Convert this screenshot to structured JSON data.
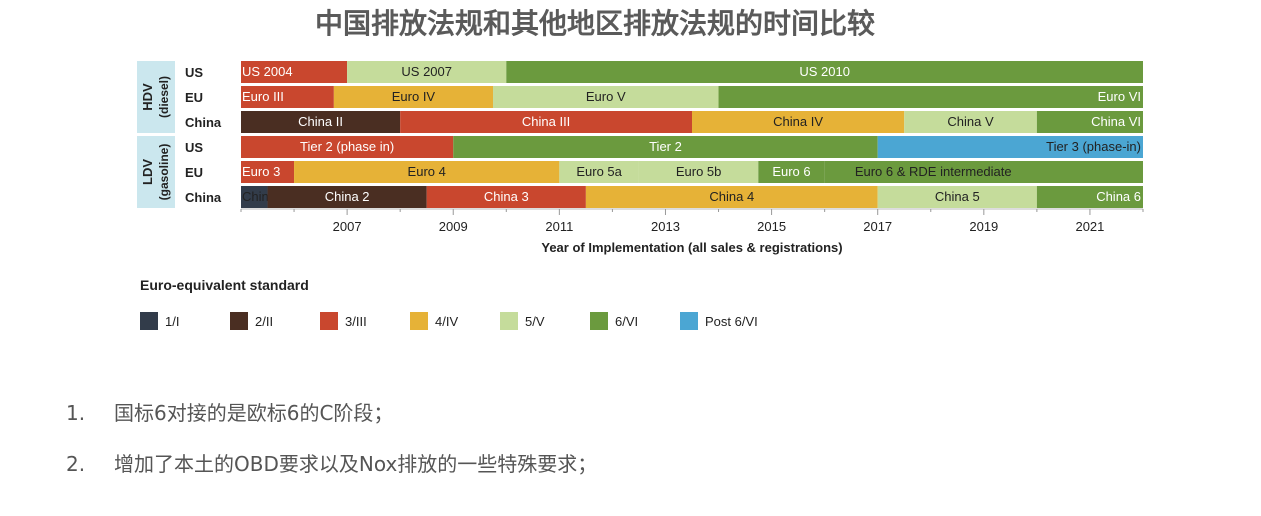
{
  "title": "中国排放法规和其他地区排放法规的时间比较",
  "notes": [
    {
      "num": "1.",
      "text": "国标6对接的是欧标6的C阶段；"
    },
    {
      "num": "2.",
      "text": "增加了本土的OBD要求以及Nox排放的一些特殊要求；"
    }
  ],
  "colors": {
    "1/I": "#323c4a",
    "2/II": "#4a2e22",
    "3/III": "#c9472e",
    "4/IV": "#e6b237",
    "5/V": "#c5dc9b",
    "6/VI": "#6b9a3e",
    "Post 6/VI": "#4ba6d3",
    "group_bg": "#cbe7ee"
  },
  "chart_data": {
    "type": "timeline",
    "xlabel": "Year of Implementation (all sales & registrations)",
    "xlim": [
      2005,
      2022
    ],
    "xticks": [
      2007,
      2009,
      2011,
      2013,
      2015,
      2017,
      2019,
      2021
    ],
    "groups": [
      {
        "label_top": "HDV",
        "label_bottom": "(diesel)",
        "rows": [
          0,
          1,
          2
        ]
      },
      {
        "label_top": "LDV",
        "label_bottom": "(gasoline)",
        "rows": [
          3,
          4,
          5
        ]
      }
    ],
    "rows": [
      {
        "label": "US",
        "segments": [
          {
            "label": "US 2004",
            "start": 2005,
            "end": 2007,
            "std": "3/III",
            "align": "left"
          },
          {
            "label": "US 2007",
            "start": 2007,
            "end": 2010,
            "std": "5/V",
            "align": "center"
          },
          {
            "label": "US 2010",
            "start": 2010,
            "end": 2022,
            "std": "6/VI",
            "align": "center"
          }
        ]
      },
      {
        "label": "EU",
        "segments": [
          {
            "label": "Euro III",
            "start": 2005,
            "end": 2006.75,
            "std": "3/III",
            "align": "left"
          },
          {
            "label": "Euro IV",
            "start": 2006.75,
            "end": 2009.75,
            "std": "4/IV",
            "align": "center"
          },
          {
            "label": "Euro V",
            "start": 2009.75,
            "end": 2014,
            "std": "5/V",
            "align": "center"
          },
          {
            "label": "Euro VI",
            "start": 2014,
            "end": 2022,
            "std": "6/VI",
            "align": "right"
          }
        ]
      },
      {
        "label": "China",
        "segments": [
          {
            "label": "China II",
            "start": 2005,
            "end": 2008,
            "std": "2/II",
            "align": "center"
          },
          {
            "label": "China III",
            "start": 2008,
            "end": 2013.5,
            "std": "3/III",
            "align": "center"
          },
          {
            "label": "China IV",
            "start": 2013.5,
            "end": 2017.5,
            "std": "4/IV",
            "align": "center"
          },
          {
            "label": "China V",
            "start": 2017.5,
            "end": 2020,
            "std": "5/V",
            "align": "center"
          },
          {
            "label": "China VI",
            "start": 2020,
            "end": 2022,
            "std": "6/VI",
            "align": "right"
          }
        ]
      },
      {
        "label": "US",
        "segments": [
          {
            "label": "Tier 2 (phase in)",
            "start": 2005,
            "end": 2009,
            "std": "3/III",
            "align": "center"
          },
          {
            "label": "Tier 2",
            "start": 2009,
            "end": 2017,
            "std": "6/VI",
            "align": "center"
          },
          {
            "label": "Tier 3 (phase-in)",
            "start": 2017,
            "end": 2022,
            "std": "Post 6/VI",
            "align": "right"
          }
        ]
      },
      {
        "label": "EU",
        "segments": [
          {
            "label": "Euro 3",
            "start": 2005,
            "end": 2006,
            "std": "3/III",
            "align": "left"
          },
          {
            "label": "Euro 4",
            "start": 2006,
            "end": 2011,
            "std": "4/IV",
            "align": "center"
          },
          {
            "label": "Euro 5a",
            "start": 2011,
            "end": 2012.5,
            "std": "5/V",
            "align": "center"
          },
          {
            "label": "Euro 5b",
            "start": 2012.5,
            "end": 2014.75,
            "std": "5/V",
            "align": "center"
          },
          {
            "label": "Euro 6",
            "start": 2014.75,
            "end": 2016,
            "std": "6/VI",
            "align": "center"
          },
          {
            "label": "Euro 6 & RDE intermediate",
            "start": 2016,
            "end": 2022,
            "std": "6/VI",
            "align": "left",
            "pad": 0.55
          }
        ]
      },
      {
        "label": "China",
        "segments": [
          {
            "label": "China 1",
            "start": 2005,
            "end": 2005.5,
            "std": "1/I",
            "align": "left"
          },
          {
            "label": "China 2",
            "start": 2005.5,
            "end": 2008.5,
            "std": "2/II",
            "align": "center"
          },
          {
            "label": "China 3",
            "start": 2008.5,
            "end": 2011.5,
            "std": "3/III",
            "align": "center"
          },
          {
            "label": "China 4",
            "start": 2011.5,
            "end": 2017,
            "std": "4/IV",
            "align": "center"
          },
          {
            "label": "China 5",
            "start": 2017,
            "end": 2020,
            "std": "5/V",
            "align": "center"
          },
          {
            "label": "China 6",
            "start": 2020,
            "end": 2022,
            "std": "6/VI",
            "align": "right"
          }
        ]
      }
    ],
    "legend": {
      "title": "Euro-equivalent standard",
      "items": [
        "1/I",
        "2/II",
        "3/III",
        "4/IV",
        "5/V",
        "6/VI",
        "Post 6/VI"
      ]
    }
  }
}
